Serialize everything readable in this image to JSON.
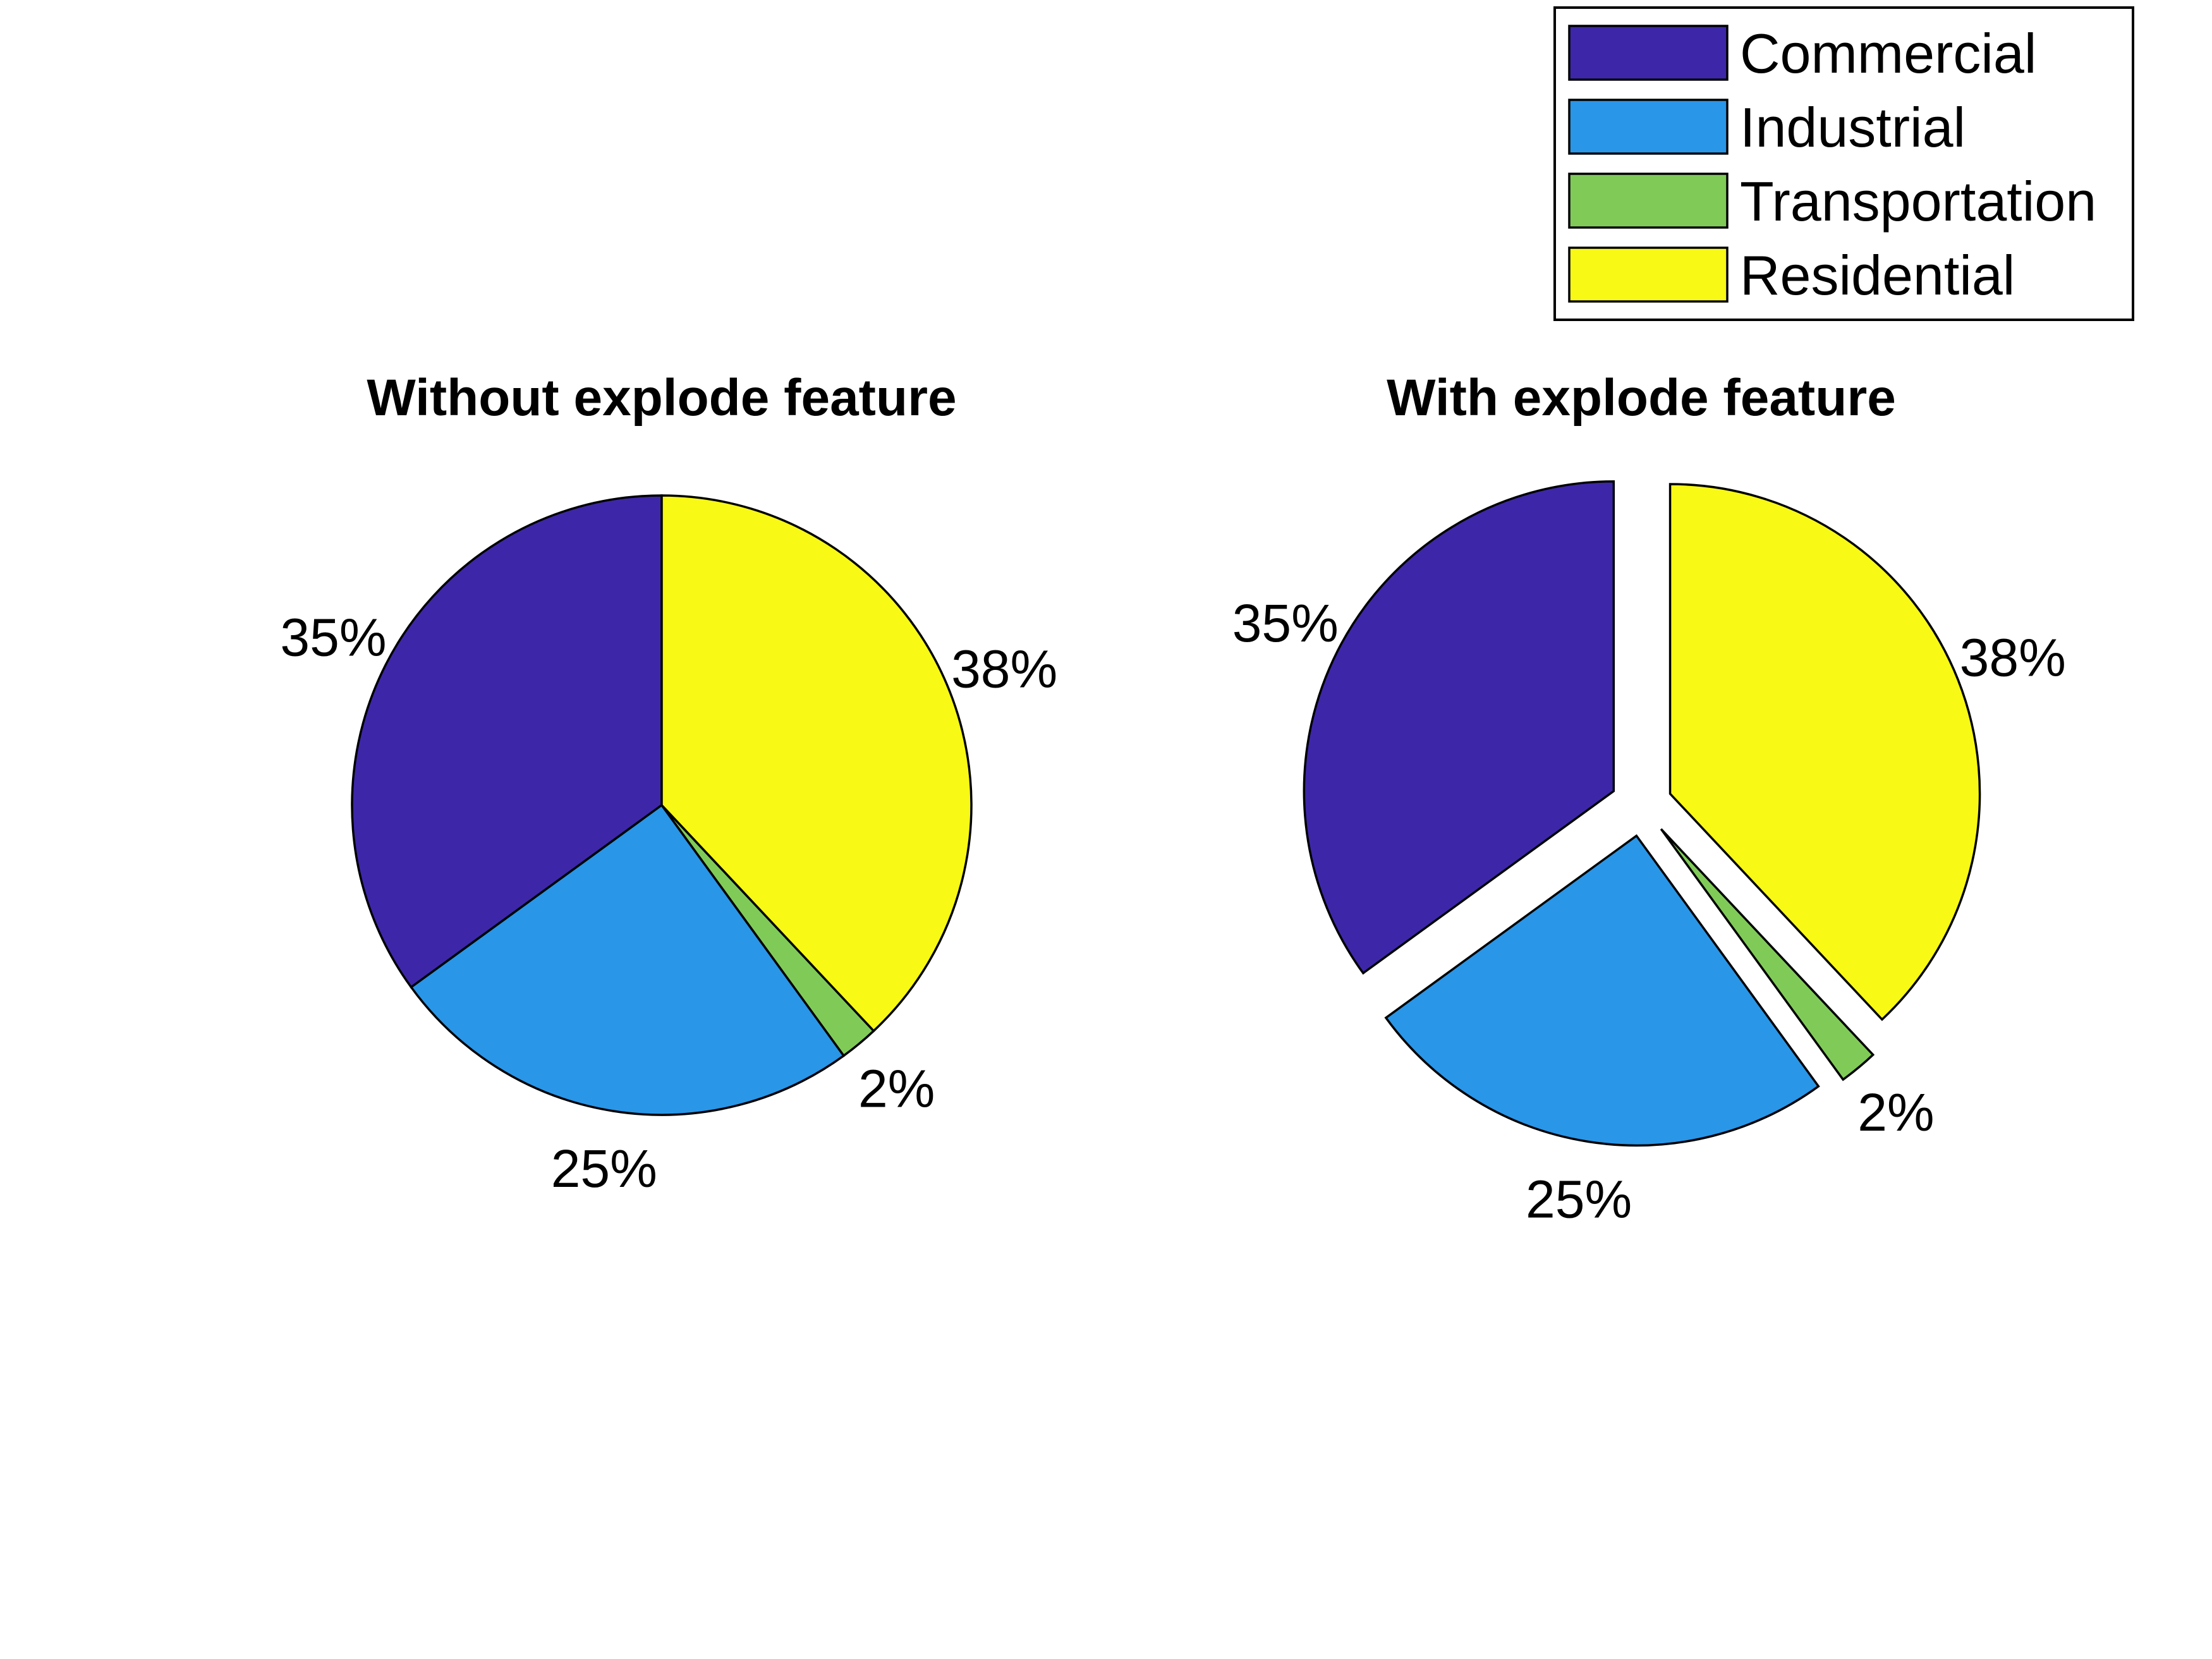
{
  "chart_data": [
    {
      "type": "pie",
      "title": "Without explode feature",
      "categories": [
        "Commercial",
        "Industrial",
        "Transportation",
        "Residential"
      ],
      "values": [
        35,
        25,
        2,
        38
      ],
      "labels": [
        "35%",
        "25%",
        "2%",
        "38%"
      ],
      "explode": [
        false,
        false,
        false,
        false
      ]
    },
    {
      "type": "pie",
      "title": "With explode feature",
      "categories": [
        "Commercial",
        "Industrial",
        "Transportation",
        "Residential"
      ],
      "values": [
        35,
        25,
        2,
        38
      ],
      "labels": [
        "35%",
        "25%",
        "2%",
        "38%"
      ],
      "explode": [
        true,
        true,
        true,
        true
      ]
    }
  ],
  "legend": {
    "placement": "top-right",
    "entries": [
      {
        "label": "Commercial",
        "color": "#3d27a8"
      },
      {
        "label": "Industrial",
        "color": "#2996e8"
      },
      {
        "label": "Transportation",
        "color": "#80cb58"
      },
      {
        "label": "Residential",
        "color": "#f8f914"
      }
    ]
  }
}
